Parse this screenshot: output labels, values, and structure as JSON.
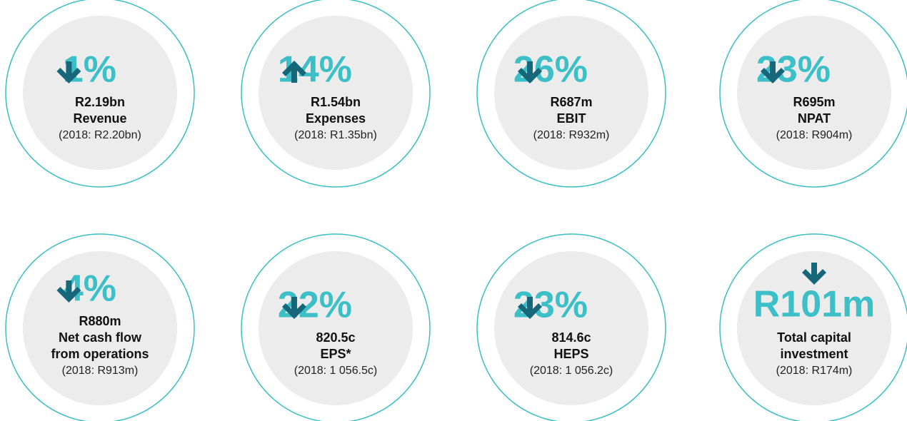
{
  "items": [
    {
      "direction": "down",
      "change": "1%",
      "value": "R2.19bn",
      "label": [
        "Revenue"
      ],
      "comparison": "(2018: R2.20bn)"
    },
    {
      "direction": "up",
      "change": "14%",
      "value": "R1.54bn",
      "label": [
        "Expenses"
      ],
      "comparison": "(2018: R1.35bn)"
    },
    {
      "direction": "down",
      "change": "26%",
      "value": "R687m",
      "label": [
        "EBIT"
      ],
      "comparison": "(2018: R932m)"
    },
    {
      "direction": "down",
      "change": "23%",
      "value": "R695m",
      "label": [
        "NPAT"
      ],
      "comparison": "(2018: R904m)"
    },
    {
      "direction": "down",
      "change": "4%",
      "value": "R880m",
      "label": [
        "Net cash flow",
        "from operations"
      ],
      "comparison": "(2018: R913m)"
    },
    {
      "direction": "down",
      "change": "22%",
      "value": "820.5c",
      "label": [
        "EPS*"
      ],
      "comparison": "(2018: 1 056.5c)"
    },
    {
      "direction": "down",
      "change": "23%",
      "value": "814.6c",
      "label": [
        "HEPS"
      ],
      "comparison": "(2018: 1 056.2c)"
    },
    {
      "direction": "down",
      "change": "R101m",
      "label": [
        "Total capital",
        "investment"
      ],
      "comparison": "(2018: R174m)"
    }
  ]
}
